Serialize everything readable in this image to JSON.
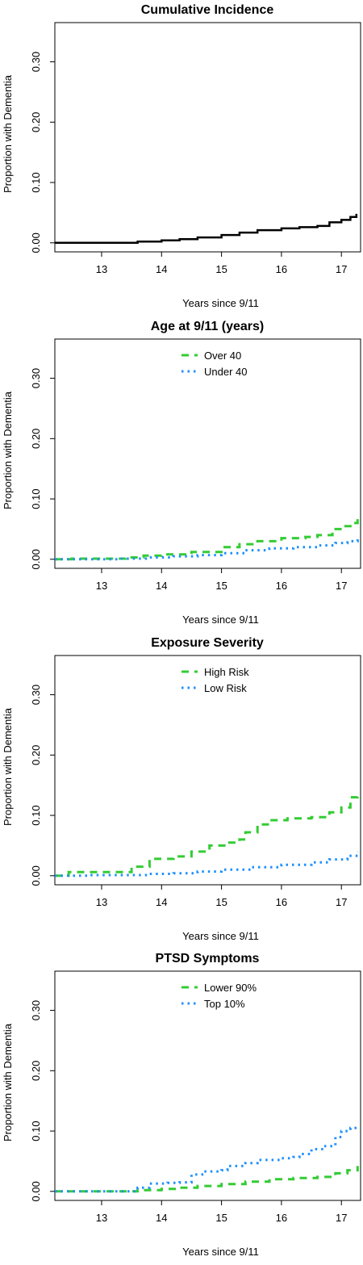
{
  "colors": {
    "green": "#33cc33",
    "blue": "#1e90ff",
    "black": "#000000"
  },
  "chart_data": [
    {
      "type": "line",
      "title": "Cumulative Incidence",
      "xlabel": "Years since 9/11",
      "ylabel": "Proportion with Dementia",
      "xlim": [
        12.22,
        17.32
      ],
      "ylim": [
        -0.015,
        0.365
      ],
      "xticks": [
        "13",
        "14",
        "15",
        "16",
        "17"
      ],
      "yticks": [
        "0.00",
        "0.10",
        "0.20",
        "0.30"
      ],
      "legend": "none",
      "series": [
        {
          "color_key": "black",
          "dash": "solid",
          "points": [
            [
              12.22,
              0.0
            ],
            [
              13.2,
              0.0
            ],
            [
              13.6,
              0.002
            ],
            [
              14.0,
              0.004
            ],
            [
              14.3,
              0.006
            ],
            [
              14.6,
              0.009
            ],
            [
              15.0,
              0.013
            ],
            [
              15.3,
              0.017
            ],
            [
              15.6,
              0.021
            ],
            [
              16.0,
              0.024
            ],
            [
              16.3,
              0.026
            ],
            [
              16.6,
              0.028
            ],
            [
              16.8,
              0.034
            ],
            [
              17.0,
              0.038
            ],
            [
              17.15,
              0.043
            ],
            [
              17.25,
              0.048
            ]
          ]
        }
      ]
    },
    {
      "type": "line",
      "title": "Age at 9/11 (years)",
      "xlabel": "Years since 9/11",
      "ylabel": "Proportion with Dementia",
      "xlim": [
        12.22,
        17.32
      ],
      "ylim": [
        -0.015,
        0.365
      ],
      "xticks": [
        "13",
        "14",
        "15",
        "16",
        "17"
      ],
      "yticks": [
        "0.00",
        "0.10",
        "0.20",
        "0.30"
      ],
      "legend": "top-center",
      "series": [
        {
          "name": "Over 40",
          "color_key": "green",
          "dash": "long",
          "points": [
            [
              12.22,
              0.0
            ],
            [
              12.5,
              0.001
            ],
            [
              13.0,
              0.001
            ],
            [
              13.4,
              0.003
            ],
            [
              13.7,
              0.006
            ],
            [
              14.0,
              0.008
            ],
            [
              14.5,
              0.012
            ],
            [
              15.0,
              0.02
            ],
            [
              15.3,
              0.025
            ],
            [
              15.6,
              0.03
            ],
            [
              16.0,
              0.035
            ],
            [
              16.4,
              0.037
            ],
            [
              16.6,
              0.04
            ],
            [
              16.85,
              0.05
            ],
            [
              17.05,
              0.055
            ],
            [
              17.2,
              0.06
            ],
            [
              17.27,
              0.068
            ]
          ]
        },
        {
          "name": "Under 40",
          "color_key": "blue",
          "dash": "dot",
          "points": [
            [
              12.22,
              0.0
            ],
            [
              12.8,
              0.0
            ],
            [
              13.3,
              0.001
            ],
            [
              13.8,
              0.003
            ],
            [
              14.2,
              0.005
            ],
            [
              14.6,
              0.007
            ],
            [
              15.0,
              0.01
            ],
            [
              15.4,
              0.015
            ],
            [
              15.8,
              0.018
            ],
            [
              16.2,
              0.02
            ],
            [
              16.6,
              0.023
            ],
            [
              16.9,
              0.027
            ],
            [
              17.1,
              0.03
            ],
            [
              17.27,
              0.036
            ]
          ]
        }
      ]
    },
    {
      "type": "line",
      "title": "Exposure Severity",
      "xlabel": "Years since 9/11",
      "ylabel": "Proportion with Dementia",
      "xlim": [
        12.22,
        17.32
      ],
      "ylim": [
        -0.015,
        0.365
      ],
      "xticks": [
        "13",
        "14",
        "15",
        "16",
        "17"
      ],
      "yticks": [
        "0.00",
        "0.10",
        "0.20",
        "0.30"
      ],
      "legend": "top-center",
      "series": [
        {
          "name": "High Risk",
          "color_key": "green",
          "dash": "long",
          "points": [
            [
              12.22,
              0.0
            ],
            [
              12.45,
              0.006
            ],
            [
              13.2,
              0.006
            ],
            [
              13.5,
              0.015
            ],
            [
              13.8,
              0.028
            ],
            [
              14.2,
              0.032
            ],
            [
              14.5,
              0.04
            ],
            [
              14.8,
              0.05
            ],
            [
              15.1,
              0.055
            ],
            [
              15.3,
              0.06
            ],
            [
              15.4,
              0.072
            ],
            [
              15.6,
              0.085
            ],
            [
              15.8,
              0.092
            ],
            [
              16.1,
              0.095
            ],
            [
              16.5,
              0.097
            ],
            [
              16.8,
              0.105
            ],
            [
              17.0,
              0.113
            ],
            [
              17.15,
              0.13
            ],
            [
              17.27,
              0.133
            ]
          ]
        },
        {
          "name": "Low Risk",
          "color_key": "blue",
          "dash": "dot",
          "points": [
            [
              12.22,
              0.0
            ],
            [
              12.8,
              0.001
            ],
            [
              13.3,
              0.001
            ],
            [
              13.8,
              0.003
            ],
            [
              14.2,
              0.004
            ],
            [
              14.6,
              0.007
            ],
            [
              15.0,
              0.01
            ],
            [
              15.5,
              0.014
            ],
            [
              16.0,
              0.018
            ],
            [
              16.5,
              0.022
            ],
            [
              16.8,
              0.027
            ],
            [
              17.1,
              0.033
            ],
            [
              17.27,
              0.04
            ]
          ]
        }
      ]
    },
    {
      "type": "line",
      "title": "PTSD Symptoms",
      "xlabel": "Years since 9/11",
      "ylabel": "Proportion with Dementia",
      "xlim": [
        12.22,
        17.32
      ],
      "ylim": [
        -0.015,
        0.365
      ],
      "xticks": [
        "13",
        "14",
        "15",
        "16",
        "17"
      ],
      "yticks": [
        "0.00",
        "0.10",
        "0.20",
        "0.30"
      ],
      "legend": "top-center",
      "series": [
        {
          "name": "Lower 90%",
          "color_key": "green",
          "dash": "long",
          "points": [
            [
              12.22,
              0.0
            ],
            [
              13.3,
              0.0
            ],
            [
              13.6,
              0.002
            ],
            [
              14.0,
              0.004
            ],
            [
              14.3,
              0.006
            ],
            [
              14.6,
              0.009
            ],
            [
              15.0,
              0.012
            ],
            [
              15.4,
              0.016
            ],
            [
              15.8,
              0.02
            ],
            [
              16.2,
              0.022
            ],
            [
              16.6,
              0.024
            ],
            [
              16.9,
              0.03
            ],
            [
              17.1,
              0.035
            ],
            [
              17.27,
              0.042
            ]
          ]
        },
        {
          "name": "Top 10%",
          "color_key": "blue",
          "dash": "dot",
          "points": [
            [
              12.22,
              0.0
            ],
            [
              13.4,
              0.0
            ],
            [
              13.6,
              0.006
            ],
            [
              13.8,
              0.013
            ],
            [
              14.1,
              0.014
            ],
            [
              14.3,
              0.015
            ],
            [
              14.5,
              0.028
            ],
            [
              14.7,
              0.033
            ],
            [
              15.0,
              0.035
            ],
            [
              15.1,
              0.042
            ],
            [
              15.4,
              0.047
            ],
            [
              15.6,
              0.052
            ],
            [
              16.0,
              0.055
            ],
            [
              16.2,
              0.057
            ],
            [
              16.3,
              0.062
            ],
            [
              16.5,
              0.07
            ],
            [
              16.7,
              0.075
            ],
            [
              16.9,
              0.09
            ],
            [
              17.0,
              0.1
            ],
            [
              17.15,
              0.105
            ],
            [
              17.27,
              0.11
            ]
          ]
        }
      ]
    }
  ]
}
